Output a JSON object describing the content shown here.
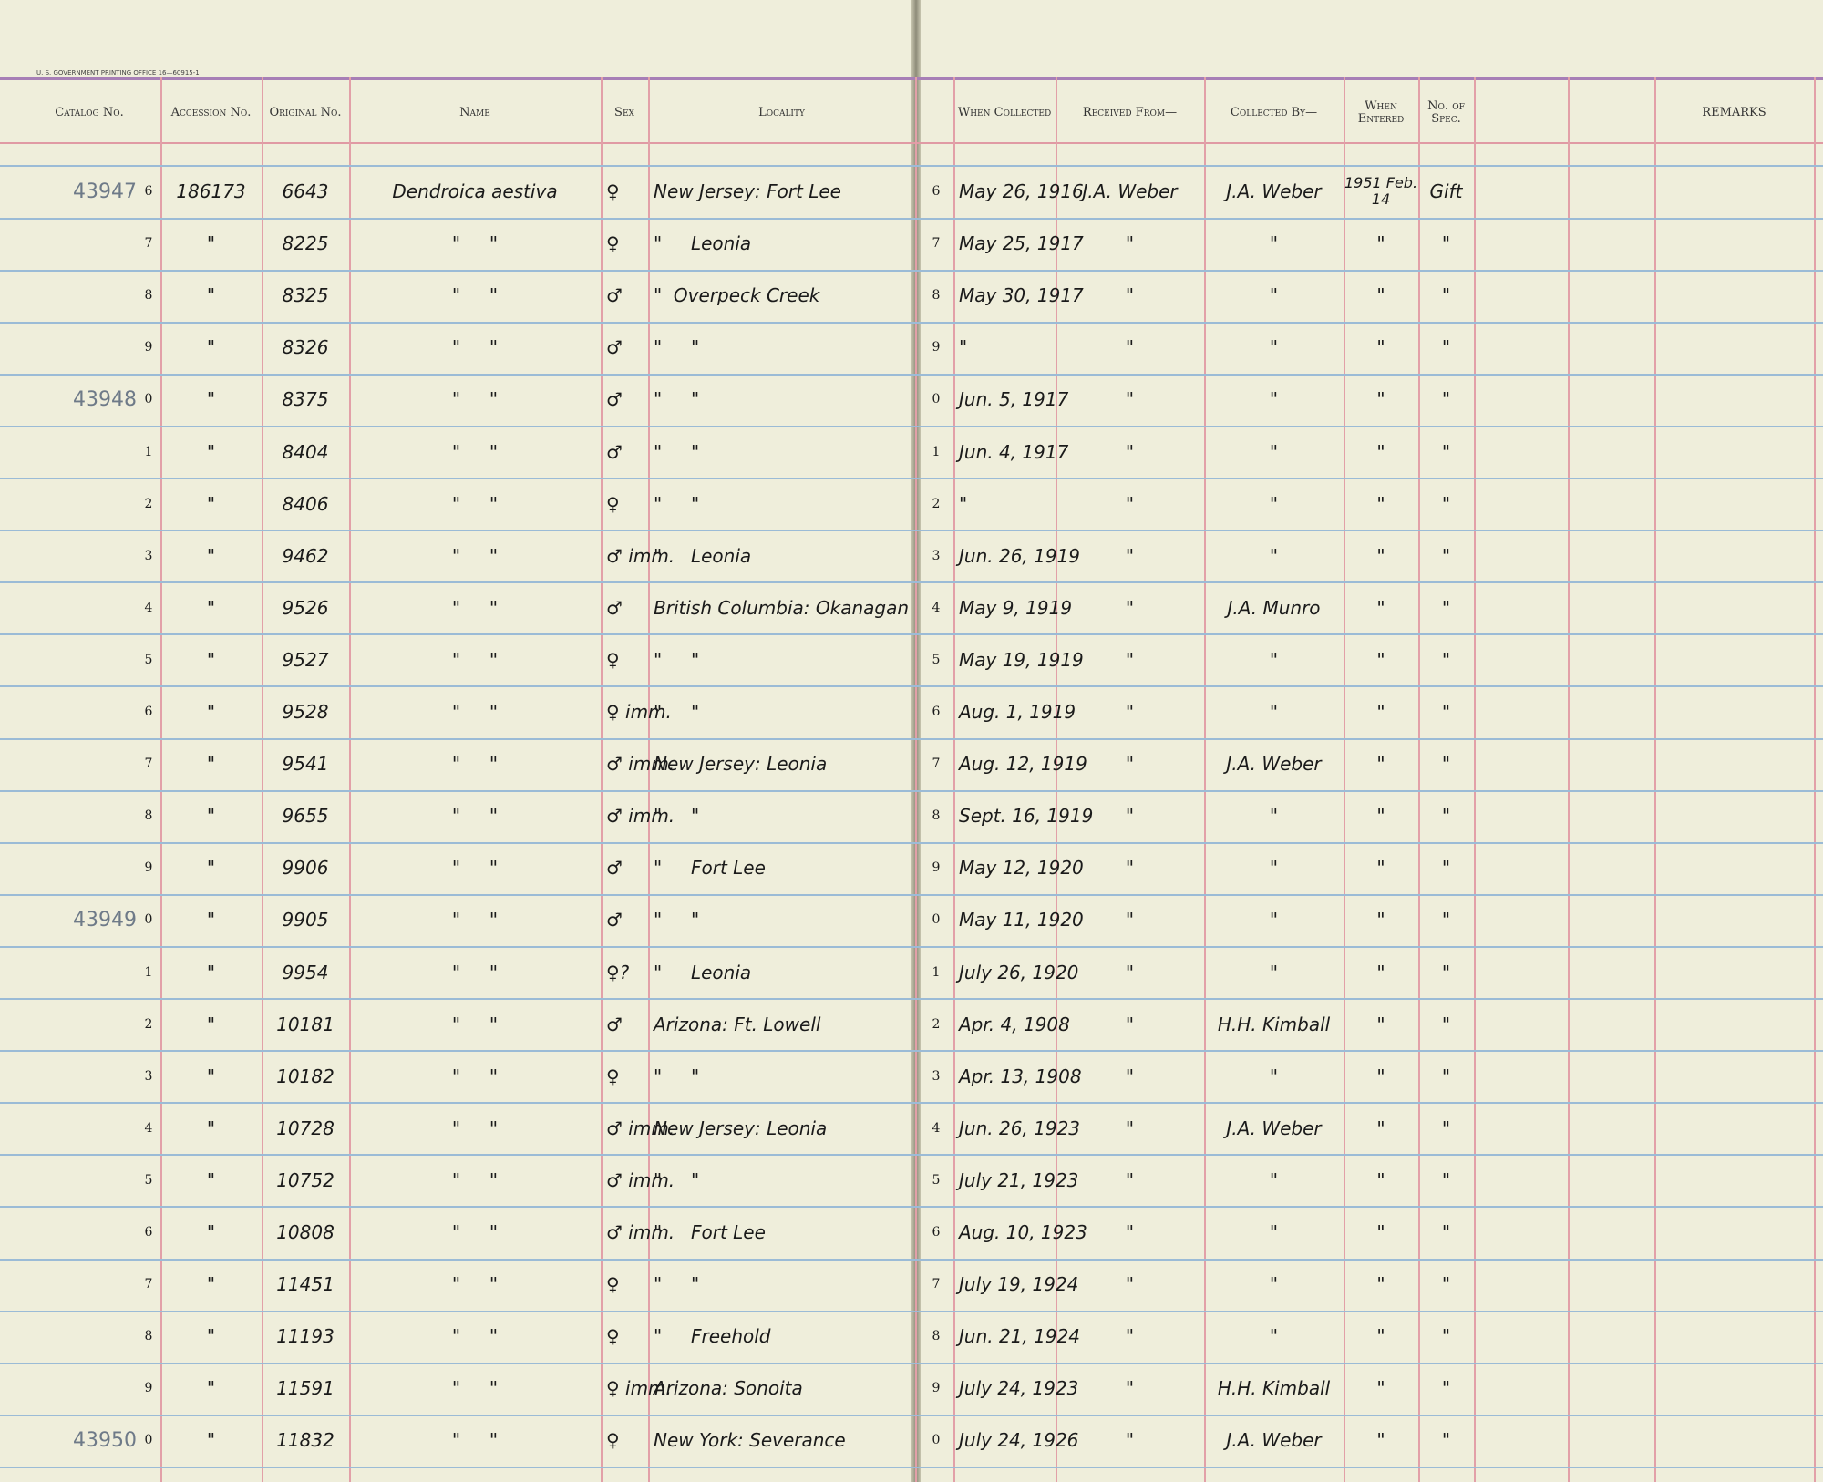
{
  "header": {
    "printer": "U. S. GOVERNMENT PRINTING OFFICE 16—60915-1",
    "columns": [
      "Catalog No.",
      "Accession No.",
      "Original No.",
      "Name",
      "Sex",
      "Locality",
      "When Collected",
      "Received From—",
      "Collected By—",
      "When Entered",
      "No. of Spec.",
      "REMARKS"
    ]
  },
  "rows": [
    {
      "catalog": "43947",
      "number": "6",
      "accession": "186173",
      "original": "6643",
      "name": "Dendroica aestiva",
      "sex": "♀",
      "locality": "New Jersey: Fort Lee",
      "collected": "May 26, 1916",
      "received": "J.A. Weber",
      "collector": "J.A. Weber",
      "entered": "1951 Feb. 14",
      "spec": "Gift"
    },
    {
      "number": "7",
      "accession": "\"",
      "original": "8225",
      "name": "\"     \"",
      "sex": "♀",
      "locality": "\"     Leonia",
      "collected": "May 25, 1917",
      "received": "\"",
      "collector": "\"",
      "entered": "\"",
      "spec": "\""
    },
    {
      "number": "8",
      "accession": "\"",
      "original": "8325",
      "name": "\"     \"",
      "sex": "♂",
      "locality": "\"  Overpeck Creek",
      "collected": "May 30, 1917",
      "received": "\"",
      "collector": "\"",
      "entered": "\"",
      "spec": "\""
    },
    {
      "number": "9",
      "accession": "\"",
      "original": "8326",
      "name": "\"     \"",
      "sex": "♂",
      "locality": "\"     \"",
      "collected": "\"",
      "received": "\"",
      "collector": "\"",
      "entered": "\"",
      "spec": "\""
    },
    {
      "catalog": "43948",
      "number": "0",
      "accession": "\"",
      "original": "8375",
      "name": "\"     \"",
      "sex": "♂",
      "locality": "\"     \"",
      "collected": "Jun. 5, 1917",
      "received": "\"",
      "collector": "\"",
      "entered": "\"",
      "spec": "\""
    },
    {
      "number": "1",
      "accession": "\"",
      "original": "8404",
      "name": "\"     \"",
      "sex": "♂",
      "locality": "\"     \"",
      "collected": "Jun. 4, 1917",
      "received": "\"",
      "collector": "\"",
      "entered": "\"",
      "spec": "\""
    },
    {
      "number": "2",
      "accession": "\"",
      "original": "8406",
      "name": "\"     \"",
      "sex": "♀",
      "locality": "\"     \"",
      "collected": "\"",
      "received": "\"",
      "collector": "\"",
      "entered": "\"",
      "spec": "\""
    },
    {
      "number": "3",
      "accession": "\"",
      "original": "9462",
      "name": "\"     \"",
      "sex": "♂ imm.",
      "locality": "\"     Leonia",
      "collected": "Jun. 26, 1919",
      "received": "\"",
      "collector": "\"",
      "entered": "\"",
      "spec": "\""
    },
    {
      "number": "4",
      "accession": "\"",
      "original": "9526",
      "name": "\"     \"",
      "sex": "♂",
      "locality": "British Columbia: Okanagan",
      "collected": "May 9, 1919",
      "received": "\"",
      "collector": "J.A. Munro",
      "entered": "\"",
      "spec": "\""
    },
    {
      "number": "5",
      "accession": "\"",
      "original": "9527",
      "name": "\"     \"",
      "sex": "♀",
      "locality": "\"     \"",
      "collected": "May 19, 1919",
      "received": "\"",
      "collector": "\"",
      "entered": "\"",
      "spec": "\""
    },
    {
      "number": "6",
      "accession": "\"",
      "original": "9528",
      "name": "\"     \"",
      "sex": "♀ imm.",
      "locality": "\"     \"",
      "collected": "Aug. 1, 1919",
      "received": "\"",
      "collector": "\"",
      "entered": "\"",
      "spec": "\""
    },
    {
      "number": "7",
      "accession": "\"",
      "original": "9541",
      "name": "\"     \"",
      "sex": "♂ imm.",
      "locality": "New Jersey: Leonia",
      "collected": "Aug. 12, 1919",
      "received": "\"",
      "collector": "J.A. Weber",
      "entered": "\"",
      "spec": "\""
    },
    {
      "number": "8",
      "accession": "\"",
      "original": "9655",
      "name": "\"     \"",
      "sex": "♂ imm.",
      "locality": "\"     \"",
      "collected": "Sept. 16, 1919",
      "received": "\"",
      "collector": "\"",
      "entered": "\"",
      "spec": "\""
    },
    {
      "number": "9",
      "accession": "\"",
      "original": "9906",
      "name": "\"     \"",
      "sex": "♂",
      "locality": "\"     Fort Lee",
      "collected": "May 12, 1920",
      "received": "\"",
      "collector": "\"",
      "entered": "\"",
      "spec": "\""
    },
    {
      "catalog": "43949",
      "number": "0",
      "accession": "\"",
      "original": "9905",
      "name": "\"     \"",
      "sex": "♂",
      "locality": "\"     \"",
      "collected": "May 11, 1920",
      "received": "\"",
      "collector": "\"",
      "entered": "\"",
      "spec": "\""
    },
    {
      "number": "1",
      "accession": "\"",
      "original": "9954",
      "name": "\"     \"",
      "sex": "♀?",
      "locality": "\"     Leonia",
      "collected": "July 26, 1920",
      "received": "\"",
      "collector": "\"",
      "entered": "\"",
      "spec": "\""
    },
    {
      "number": "2",
      "accession": "\"",
      "original": "10181",
      "name": "\"     \"",
      "sex": "♂",
      "locality": "Arizona: Ft. Lowell",
      "collected": "Apr. 4, 1908",
      "received": "\"",
      "collector": "H.H. Kimball",
      "entered": "\"",
      "spec": "\""
    },
    {
      "number": "3",
      "accession": "\"",
      "original": "10182",
      "name": "\"     \"",
      "sex": "♀",
      "locality": "\"     \"",
      "collected": "Apr. 13, 1908",
      "received": "\"",
      "collector": "\"",
      "entered": "\"",
      "spec": "\""
    },
    {
      "number": "4",
      "accession": "\"",
      "original": "10728",
      "name": "\"     \"",
      "sex": "♂ imm.",
      "locality": "New Jersey: Leonia",
      "collected": "Jun. 26, 1923",
      "received": "\"",
      "collector": "J.A. Weber",
      "entered": "\"",
      "spec": "\""
    },
    {
      "number": "5",
      "accession": "\"",
      "original": "10752",
      "name": "\"     \"",
      "sex": "♂ imm.",
      "locality": "\"     \"",
      "collected": "July 21, 1923",
      "received": "\"",
      "collector": "\"",
      "entered": "\"",
      "spec": "\""
    },
    {
      "number": "6",
      "accession": "\"",
      "original": "10808",
      "name": "\"     \"",
      "sex": "♂ imm.",
      "locality": "\"     Fort Lee",
      "collected": "Aug. 10, 1923",
      "received": "\"",
      "collector": "\"",
      "entered": "\"",
      "spec": "\""
    },
    {
      "number": "7",
      "accession": "\"",
      "original": "11451",
      "name": "\"     \"",
      "sex": "♀",
      "locality": "\"     \"",
      "collected": "July 19, 1924",
      "received": "\"",
      "collector": "\"",
      "entered": "\"",
      "spec": "\""
    },
    {
      "number": "8",
      "accession": "\"",
      "original": "11193",
      "name": "\"     \"",
      "sex": "♀",
      "locality": "\"     Freehold",
      "collected": "Jun. 21, 1924",
      "received": "\"",
      "collector": "\"",
      "entered": "\"",
      "spec": "\""
    },
    {
      "number": "9",
      "accession": "\"",
      "original": "11591",
      "name": "\"     \"",
      "sex": "♀ imm.",
      "locality": "Arizona: Sonoita",
      "collected": "July 24, 1923",
      "received": "\"",
      "collector": "H.H. Kimball",
      "entered": "\"",
      "spec": "\""
    },
    {
      "catalog": "43950",
      "number": "0",
      "accession": "\"",
      "original": "11832",
      "name": "\"     \"",
      "sex": "♀",
      "locality": "New York: Severance",
      "collected": "July 24, 1926",
      "received": "\"",
      "collector": "J.A. Weber",
      "entered": "\"",
      "spec": "\""
    }
  ]
}
